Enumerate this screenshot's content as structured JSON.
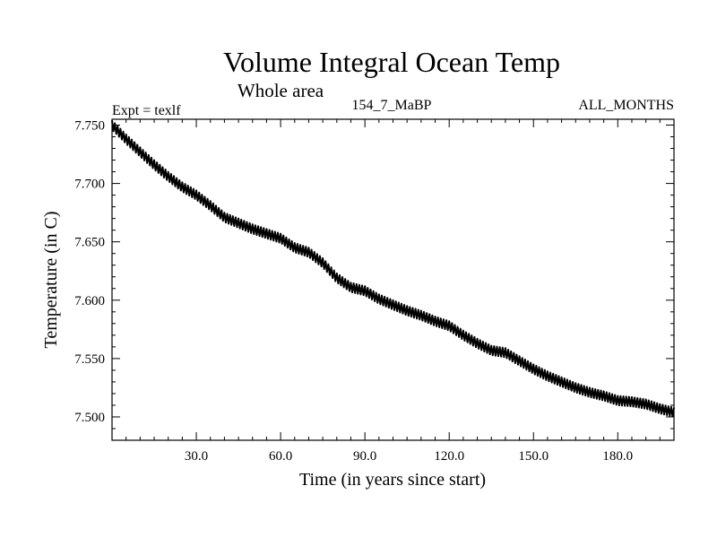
{
  "chart_data": {
    "type": "line",
    "title": "Volume Integral Ocean Temp",
    "subtitle": "Whole area",
    "left_label": "Expt = texlf",
    "center_label": "154_7_MaBP",
    "right_label": "ALL_MONTHS",
    "xlabel": "Time (in years since start)",
    "ylabel": "Temperature (in C)",
    "xlim": [
      0,
      200
    ],
    "ylim": [
      7.48,
      7.755
    ],
    "xticks": [
      30,
      60,
      90,
      120,
      150,
      180
    ],
    "xtick_labels": [
      "30.0",
      "60.0",
      "90.0",
      "120.0",
      "150.0",
      "180.0"
    ],
    "yticks": [
      7.5,
      7.55,
      7.6,
      7.65,
      7.7,
      7.75
    ],
    "ytick_labels": [
      "7.500",
      "7.550",
      "7.600",
      "7.650",
      "7.700",
      "7.750"
    ],
    "seasonal_amplitude": 0.004,
    "series": [
      {
        "name": "Volume Integral Ocean Temp",
        "color": "#000000",
        "x": [
          0,
          5,
          10,
          15,
          20,
          25,
          30,
          35,
          40,
          45,
          50,
          55,
          60,
          65,
          70,
          75,
          80,
          85,
          90,
          95,
          100,
          105,
          110,
          115,
          120,
          125,
          130,
          135,
          140,
          145,
          150,
          155,
          160,
          165,
          170,
          175,
          180,
          185,
          190,
          195,
          200
        ],
        "values": [
          7.75,
          7.738,
          7.727,
          7.716,
          7.706,
          7.697,
          7.69,
          7.681,
          7.671,
          7.666,
          7.661,
          7.657,
          7.653,
          7.645,
          7.641,
          7.632,
          7.619,
          7.611,
          7.608,
          7.601,
          7.596,
          7.591,
          7.587,
          7.582,
          7.578,
          7.57,
          7.563,
          7.557,
          7.555,
          7.548,
          7.541,
          7.535,
          7.53,
          7.525,
          7.521,
          7.518,
          7.514,
          7.513,
          7.511,
          7.507,
          7.504
        ]
      }
    ]
  }
}
